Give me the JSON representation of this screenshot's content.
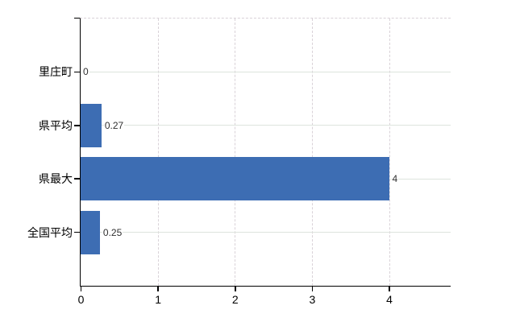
{
  "chart_data": {
    "type": "bar",
    "orientation": "horizontal",
    "title": "",
    "xlabel": "",
    "ylabel": "",
    "categories": [
      "里庄町",
      "県平均",
      "県最大",
      "全国平均"
    ],
    "values": [
      0,
      0.27,
      4,
      0.25
    ],
    "value_labels": [
      "0",
      "0.27",
      "4",
      "0.25"
    ],
    "xlim": [
      0,
      4.8
    ],
    "x_ticks": [
      0,
      1,
      2,
      3,
      4
    ],
    "x_tick_labels": [
      "0",
      "1",
      "2",
      "3",
      "4"
    ],
    "legend": "none",
    "grid": {
      "horizontal": "solid",
      "vertical": "dashed"
    },
    "colors": {
      "bar": "#3d6db3",
      "horizontal_gridline": "#dde4dd",
      "vertical_gridline": "#d9d2d8",
      "axis": "#000000",
      "value_label_text": "#303030",
      "tick_label_text": "#000000",
      "background": "#ffffff"
    }
  }
}
